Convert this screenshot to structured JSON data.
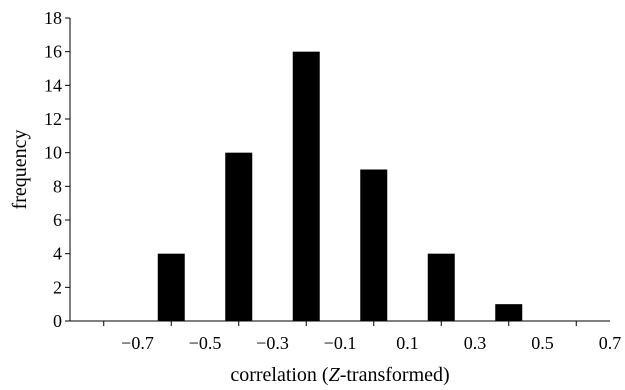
{
  "chart_data": {
    "type": "bar",
    "title": "",
    "xlabel_parts": [
      "correlation (",
      "Z",
      "-transformed)"
    ],
    "ylabel": "frequency",
    "x_ticks": [
      "−0.7",
      "−0.5",
      "−0.3",
      "−0.1",
      "0.1",
      "0.3",
      "0.5",
      "0.7"
    ],
    "x_tick_values": [
      -0.7,
      -0.5,
      -0.3,
      -0.1,
      0.1,
      0.3,
      0.5,
      0.7
    ],
    "y_ticks": [
      "0",
      "2",
      "4",
      "6",
      "8",
      "10",
      "12",
      "14",
      "16",
      "18"
    ],
    "xlim": [
      -0.9,
      0.7
    ],
    "ylim": [
      0,
      18
    ],
    "bars": [
      {
        "x": -0.6,
        "value": 4
      },
      {
        "x": -0.4,
        "value": 10
      },
      {
        "x": -0.2,
        "value": 16
      },
      {
        "x": 0.0,
        "value": 9
      },
      {
        "x": 0.2,
        "value": 4
      },
      {
        "x": 0.4,
        "value": 1
      }
    ],
    "bar_color": "#000000",
    "grid": false
  }
}
